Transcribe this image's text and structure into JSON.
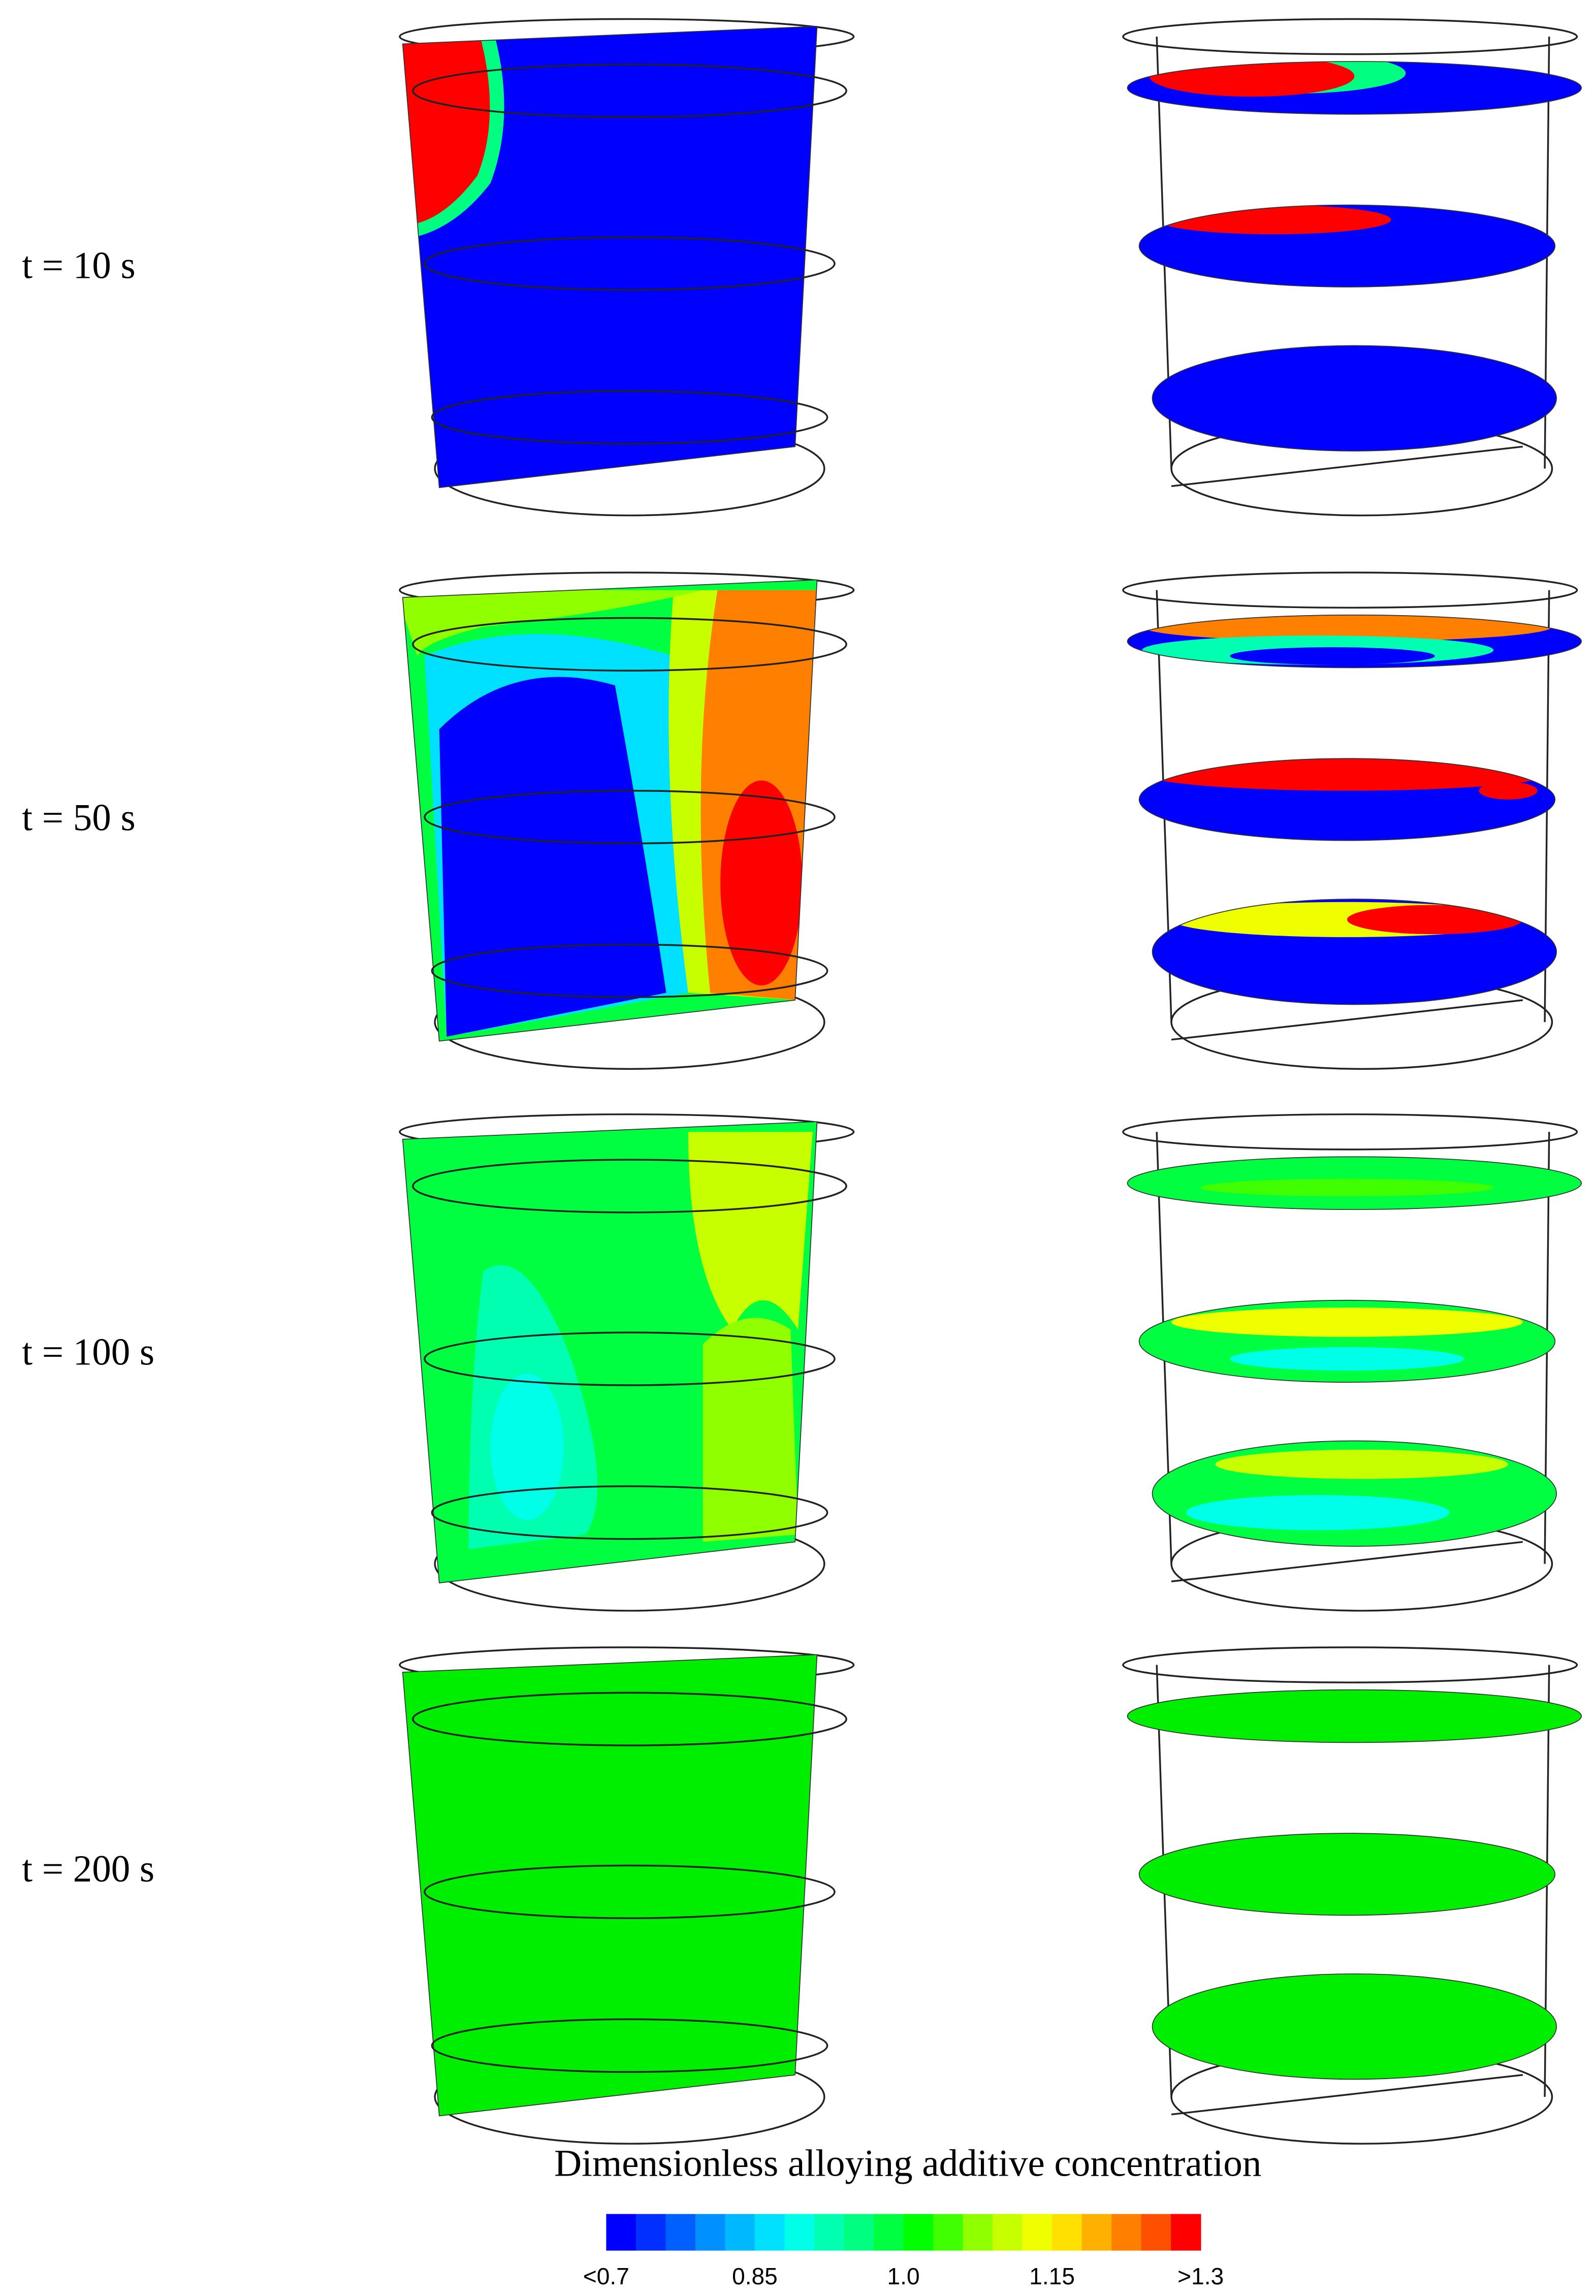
{
  "row_labels": [
    "t = 10 s",
    "t = 50 s",
    "t = 100 s",
    "t = 200 s"
  ],
  "colorbar": {
    "title": "Dimensionless alloying additive concentration",
    "tick_labels": [
      "<0.7",
      "0.85",
      "1.0",
      "1.15",
      ">1.3"
    ],
    "colors": [
      "#0000ff",
      "#0030ff",
      "#0060ff",
      "#0090ff",
      "#00b8ff",
      "#00e0ff",
      "#00ffe8",
      "#00ffb0",
      "#00ff80",
      "#00ff40",
      "#00ff00",
      "#40ff00",
      "#90ff00",
      "#c8ff00",
      "#f0ff00",
      "#ffe000",
      "#ffb000",
      "#ff8000",
      "#ff5000",
      "#ff0000"
    ]
  }
}
